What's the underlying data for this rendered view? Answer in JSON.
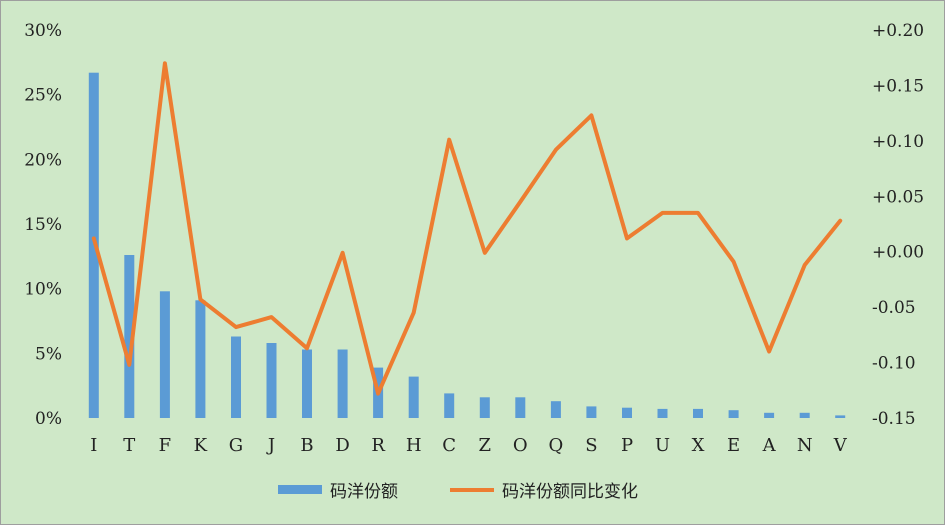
{
  "chart_data": {
    "type": "bar",
    "categories": [
      "I",
      "T",
      "F",
      "K",
      "G",
      "J",
      "B",
      "D",
      "R",
      "H",
      "C",
      "Z",
      "O",
      "Q",
      "S",
      "P",
      "U",
      "X",
      "E",
      "A",
      "N",
      "V"
    ],
    "series": [
      {
        "name": "码洋份额",
        "type": "bar",
        "axis": "left",
        "color": "#5b9bd5",
        "values": [
          26.7,
          12.6,
          9.8,
          9.1,
          6.3,
          5.8,
          5.3,
          5.3,
          3.9,
          3.2,
          1.9,
          1.6,
          1.6,
          1.3,
          0.9,
          0.8,
          0.7,
          0.7,
          0.6,
          0.4,
          0.4,
          0.2
        ]
      },
      {
        "name": "码洋份额同比变化",
        "type": "line",
        "axis": "right",
        "color": "#ed7d31",
        "values": [
          0.012,
          -0.102,
          0.17,
          -0.043,
          -0.068,
          -0.059,
          -0.087,
          -0.001,
          -0.128,
          -0.055,
          0.101,
          -0.001,
          0.045,
          0.092,
          0.123,
          0.012,
          0.035,
          0.035,
          -0.009,
          -0.09,
          -0.012,
          0.028
        ]
      }
    ],
    "y_left": {
      "ylim": [
        0,
        30
      ],
      "ticks": [
        "0%",
        "5%",
        "10%",
        "15%",
        "20%",
        "25%",
        "30%"
      ]
    },
    "y_right": {
      "ylim": [
        -0.15,
        0.2
      ],
      "ticks": [
        "-0.15",
        "-0.10",
        "-0.05",
        "+0.00",
        "+0.05",
        "+0.10",
        "+0.15",
        "+0.20"
      ]
    },
    "legend": {
      "position": "bottom"
    },
    "grid": false,
    "background": "#cfe8c8"
  }
}
